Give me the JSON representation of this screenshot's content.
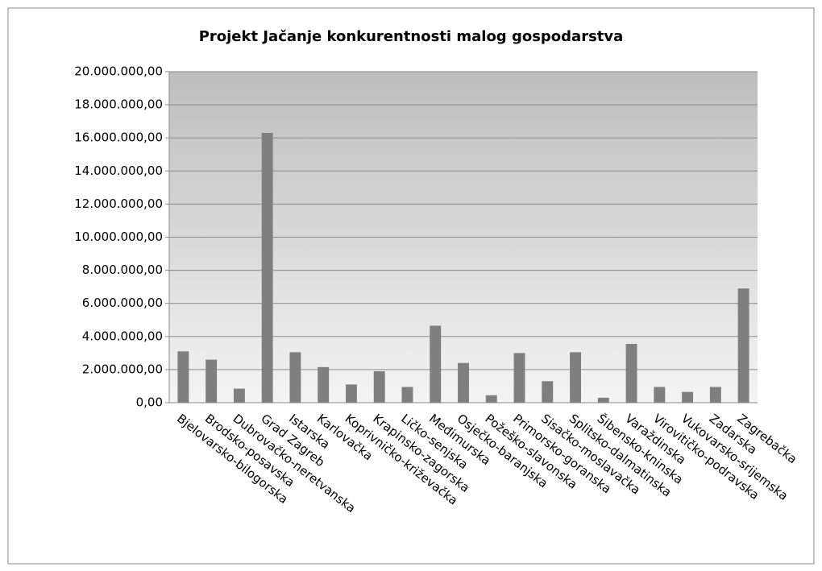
{
  "chart_data": {
    "type": "bar",
    "title": "Projekt Jačanje konkurentnosti malog gospodarstva",
    "categories": [
      "Bjelovarsko-bilogorska",
      "Brodsko-posavska",
      "Dubrovačko-neretvanska",
      "Grad Zagreb",
      "Istarska",
      "Karlovačka",
      "Koprivničko-križevačka",
      "Krapinsko-zagorska",
      "Ličko-senjska",
      "Međimurska",
      "Osječko-baranjska",
      "Požeško-slavonska",
      "Primorsko-goranska",
      "Sisačko-moslavačka",
      "Splitsko-dalmatinska",
      "Šibensko-kninska",
      "Varaždinska",
      "Virovitičko-podravska",
      "Vukovarsko-srijemska",
      "Zadarska",
      "Zagrebačka"
    ],
    "values": [
      3100000,
      2600000,
      850000,
      16300000,
      3050000,
      2150000,
      1100000,
      1900000,
      950000,
      4650000,
      2400000,
      450000,
      3000000,
      1300000,
      3050000,
      300000,
      3550000,
      950000,
      650000,
      950000,
      6900000
    ],
    "color": "#7f7f7f",
    "ylim": [
      0,
      20000000
    ],
    "yticks": [
      {
        "value": 0,
        "label": "0,00"
      },
      {
        "value": 2000000,
        "label": "2.000.000,00"
      },
      {
        "value": 4000000,
        "label": "4.000.000,00"
      },
      {
        "value": 6000000,
        "label": "6.000.000,00"
      },
      {
        "value": 8000000,
        "label": "8.000.000,00"
      },
      {
        "value": 10000000,
        "label": "10.000.000,00"
      },
      {
        "value": 12000000,
        "label": "12.000.000,00"
      },
      {
        "value": 14000000,
        "label": "14.000.000,00"
      },
      {
        "value": 16000000,
        "label": "16.000.000,00"
      },
      {
        "value": 18000000,
        "label": "18.000.000,00"
      },
      {
        "value": 20000000,
        "label": "20.000.000,00"
      }
    ],
    "grid": true
  }
}
